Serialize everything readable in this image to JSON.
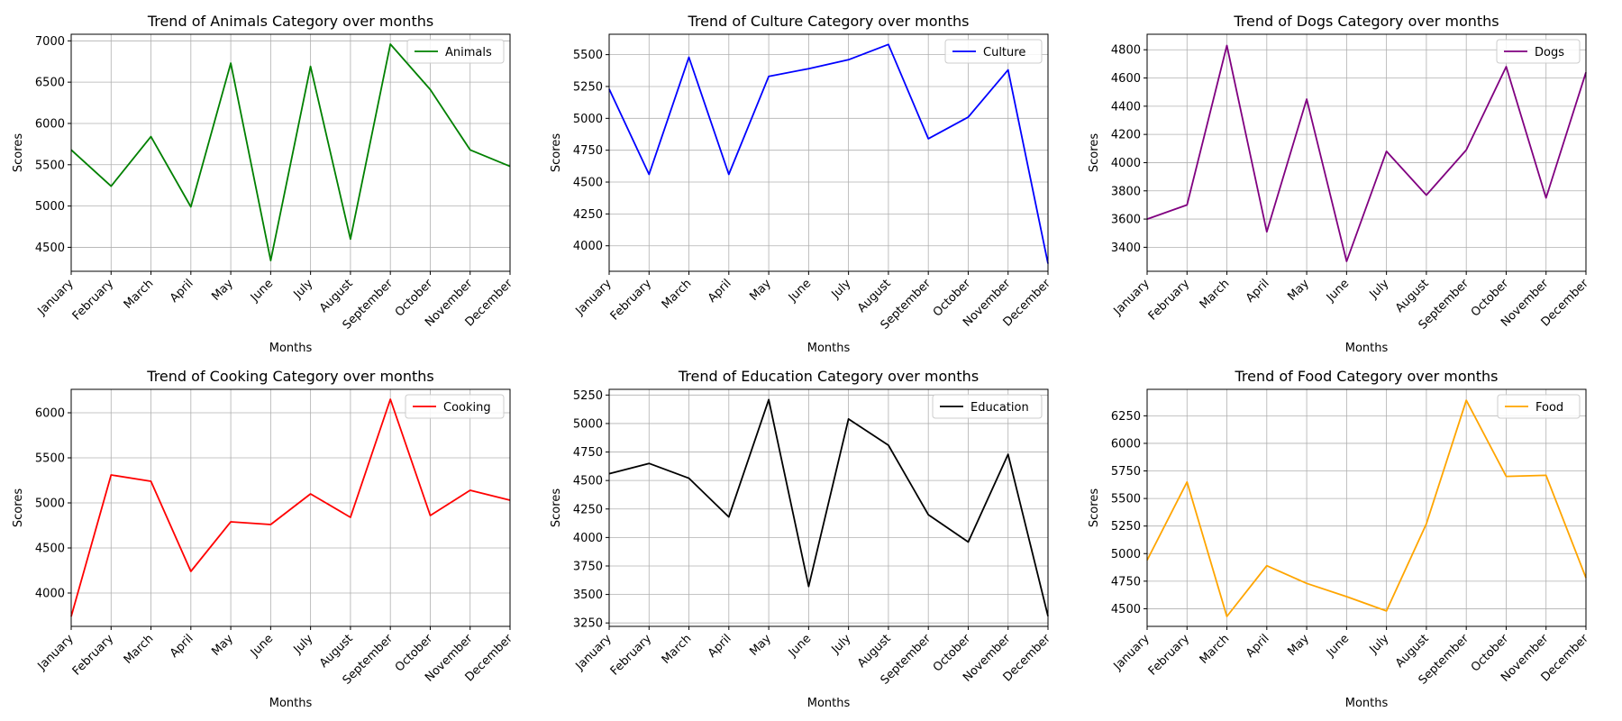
{
  "months": [
    "January",
    "February",
    "March",
    "April",
    "May",
    "June",
    "July",
    "August",
    "September",
    "October",
    "November",
    "December"
  ],
  "chart_data": [
    {
      "type": "line",
      "title": "Trend of Animals Category over months",
      "xlabel": "Months",
      "ylabel": "Scores",
      "ylim": [
        4210,
        7080
      ],
      "yticks": [
        4500,
        5000,
        5500,
        6000,
        6500,
        7000
      ],
      "legend": "top-right",
      "grid": true,
      "series": [
        {
          "name": "Animals",
          "color": "#008000",
          "values": [
            5680,
            5240,
            5840,
            4990,
            6730,
            4340,
            6690,
            4600,
            6960,
            6410,
            5680,
            5480
          ]
        }
      ]
    },
    {
      "type": "line",
      "title": "Trend of Culture Category over months",
      "xlabel": "Months",
      "ylabel": "Scores",
      "ylim": [
        3800,
        5660
      ],
      "yticks": [
        4000,
        4250,
        4500,
        4750,
        5000,
        5250,
        5500
      ],
      "legend": "top-right",
      "grid": true,
      "series": [
        {
          "name": "Culture",
          "color": "#0000ff",
          "values": [
            5230,
            4560,
            5480,
            4560,
            5330,
            5390,
            5460,
            5580,
            4840,
            5010,
            5380,
            3860
          ]
        }
      ]
    },
    {
      "type": "line",
      "title": "Trend of Dogs Category over months",
      "xlabel": "Months",
      "ylabel": "Scores",
      "ylim": [
        3230,
        4910
      ],
      "yticks": [
        3400,
        3600,
        3800,
        4000,
        4200,
        4400,
        4600,
        4800
      ],
      "legend": "top-right",
      "grid": true,
      "series": [
        {
          "name": "Dogs",
          "color": "#800080",
          "values": [
            3600,
            3700,
            4830,
            3510,
            4450,
            3300,
            4080,
            3770,
            4090,
            4680,
            3750,
            4640
          ]
        }
      ]
    },
    {
      "type": "line",
      "title": "Trend of Cooking Category over months",
      "xlabel": "Months",
      "ylabel": "Scores",
      "ylim": [
        3630,
        6260
      ],
      "yticks": [
        4000,
        4500,
        5000,
        5500,
        6000
      ],
      "legend": "top-right",
      "grid": true,
      "series": [
        {
          "name": "Cooking",
          "color": "#ff0000",
          "values": [
            3740,
            5310,
            5240,
            4240,
            4790,
            4760,
            5100,
            4840,
            6150,
            4860,
            5140,
            5030
          ]
        }
      ]
    },
    {
      "type": "line",
      "title": "Trend of Education Category over months",
      "xlabel": "Months",
      "ylabel": "Scores",
      "ylim": [
        3220,
        5300
      ],
      "yticks": [
        3250,
        3500,
        3750,
        4000,
        4250,
        4500,
        4750,
        5000,
        5250
      ],
      "legend": "top-right",
      "grid": true,
      "series": [
        {
          "name": "Education",
          "color": "#000000",
          "values": [
            4560,
            4650,
            4520,
            4180,
            5210,
            3570,
            5040,
            4810,
            4200,
            3960,
            4730,
            3310
          ]
        }
      ]
    },
    {
      "type": "line",
      "title": "Trend of Food Category over months",
      "xlabel": "Months",
      "ylabel": "Scores",
      "ylim": [
        4340,
        6490
      ],
      "yticks": [
        4500,
        4750,
        5000,
        5250,
        5500,
        5750,
        6000,
        6250
      ],
      "legend": "top-right",
      "grid": true,
      "series": [
        {
          "name": "Food",
          "color": "#ffa500",
          "values": [
            4940,
            5650,
            4430,
            4890,
            4730,
            4610,
            4480,
            5270,
            6390,
            5700,
            5710,
            4780
          ]
        }
      ]
    }
  ]
}
